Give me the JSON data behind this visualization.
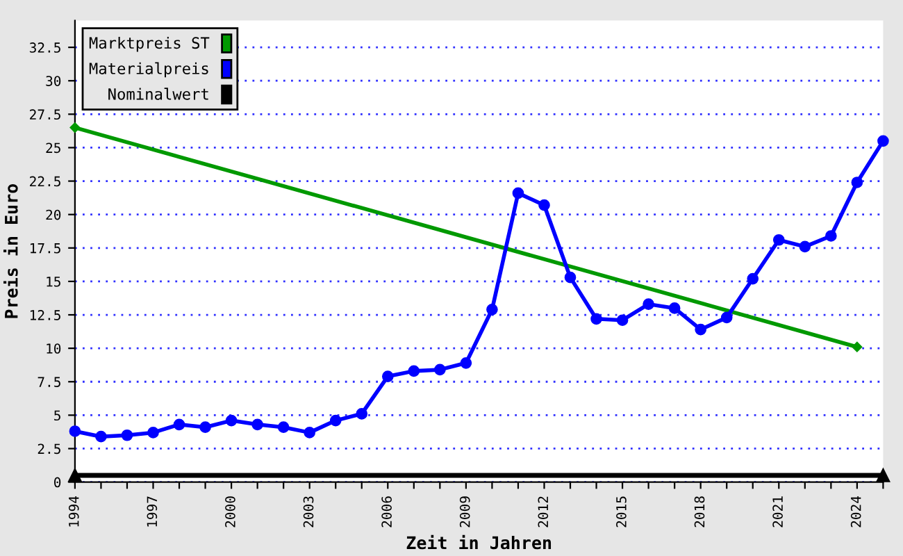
{
  "chart_data": {
    "type": "line",
    "xlabel": "Zeit in Jahren",
    "ylabel": "Preis in Euro",
    "series": [
      {
        "name": "Marktpreis ST",
        "color": "#009900",
        "marker": "diamond",
        "x": [
          1994,
          2024
        ],
        "values": [
          26.5,
          10.1
        ]
      },
      {
        "name": "Materialpreis",
        "color": "#0000ff",
        "marker": "circle",
        "x": [
          1994,
          1995,
          1996,
          1997,
          1998,
          1999,
          2000,
          2001,
          2002,
          2003,
          2004,
          2005,
          2006,
          2007,
          2008,
          2009,
          2010,
          2011,
          2012,
          2013,
          2014,
          2015,
          2016,
          2017,
          2018,
          2019,
          2020,
          2021,
          2022,
          2023,
          2024,
          2025
        ],
        "values": [
          3.8,
          3.4,
          3.5,
          3.7,
          4.3,
          4.1,
          4.6,
          4.3,
          4.1,
          3.7,
          4.6,
          5.1,
          7.9,
          8.3,
          8.4,
          8.9,
          12.9,
          21.6,
          20.7,
          15.3,
          12.2,
          12.1,
          13.3,
          13.0,
          11.4,
          12.3,
          15.2,
          18.1,
          17.6,
          18.4,
          22.4,
          25.5
        ]
      },
      {
        "name": "Nominalwert",
        "color": "#000000",
        "marker": "triangle",
        "x": [
          1994,
          2025
        ],
        "values": [
          0.5,
          0.5
        ]
      }
    ],
    "xlim": [
      1994,
      2025
    ],
    "xticks": [
      1994,
      {
        "value": 1995,
        "label": null
      },
      {
        "value": 1996,
        "label": null
      },
      1997,
      {
        "value": 1998,
        "label": null
      },
      {
        "value": 1999,
        "label": null
      },
      2000,
      {
        "value": 2001,
        "label": null
      },
      {
        "value": 2002,
        "label": null
      },
      2003,
      {
        "value": 2004,
        "label": null
      },
      {
        "value": 2005,
        "label": null
      },
      2006,
      {
        "value": 2007,
        "label": null
      },
      {
        "value": 2008,
        "label": null
      },
      2009,
      {
        "value": 2010,
        "label": null
      },
      {
        "value": 2011,
        "label": null
      },
      2012,
      {
        "value": 2013,
        "label": null
      },
      {
        "value": 2014,
        "label": null
      },
      2015,
      {
        "value": 2016,
        "label": null
      },
      {
        "value": 2017,
        "label": null
      },
      2018,
      {
        "value": 2019,
        "label": null
      },
      {
        "value": 2020,
        "label": null
      },
      2021,
      {
        "value": 2022,
        "label": null
      },
      {
        "value": 2023,
        "label": null
      },
      2024,
      {
        "value": 2025,
        "label": null
      }
    ],
    "ylim": [
      0,
      34.5
    ],
    "yticks": [
      0,
      2.5,
      5,
      7.5,
      10,
      12.5,
      15,
      17.5,
      20,
      22.5,
      25,
      27.5,
      30,
      32.5
    ],
    "grid": "y",
    "legend": "top left",
    "line_style": "solid"
  }
}
